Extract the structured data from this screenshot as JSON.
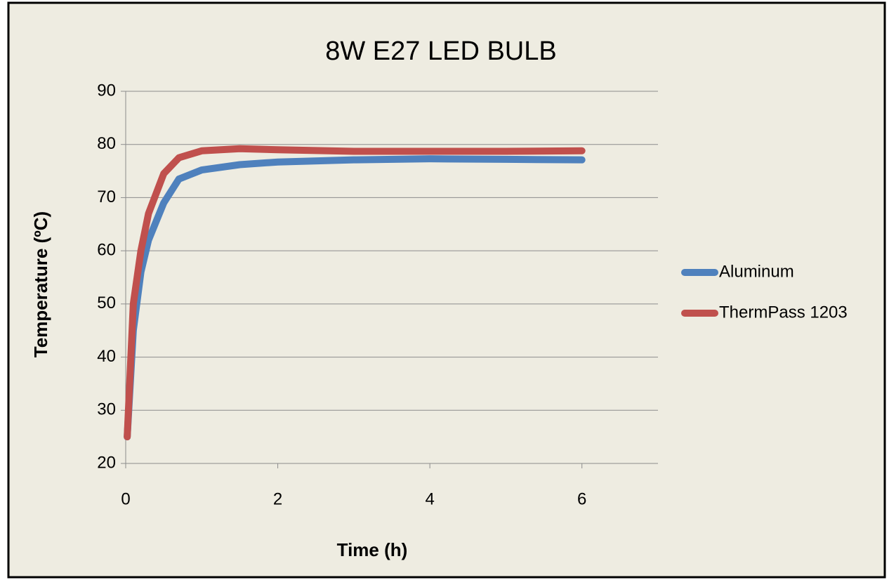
{
  "chart_data": {
    "type": "line",
    "title": "8W E27 LED BULB",
    "x_label": "Time (h)",
    "y_label": "Temperature (ºC)",
    "x": [
      0.02,
      0.1,
      0.2,
      0.3,
      0.5,
      0.7,
      1.0,
      1.5,
      2,
      3,
      4,
      5,
      6
    ],
    "series": [
      {
        "name": "Aluminum",
        "color": "#4f81bd",
        "values": [
          25,
          45,
          56,
          62,
          69,
          73.5,
          75.2,
          76.2,
          76.7,
          77.1,
          77.3,
          77.2,
          77.1
        ]
      },
      {
        "name": "ThermPass 1203",
        "color": "#c0504d",
        "values": [
          25,
          50,
          60,
          67,
          74.5,
          77.5,
          78.8,
          79.2,
          79,
          78.7,
          78.7,
          78.7,
          78.8
        ]
      }
    ],
    "xlim": [
      0,
      7
    ],
    "xticks": [
      0,
      2,
      4,
      6
    ],
    "ylim": [
      20,
      90
    ],
    "yticks": [
      20,
      30,
      40,
      50,
      60,
      70,
      80,
      90
    ],
    "grid": true,
    "legend": "right"
  }
}
